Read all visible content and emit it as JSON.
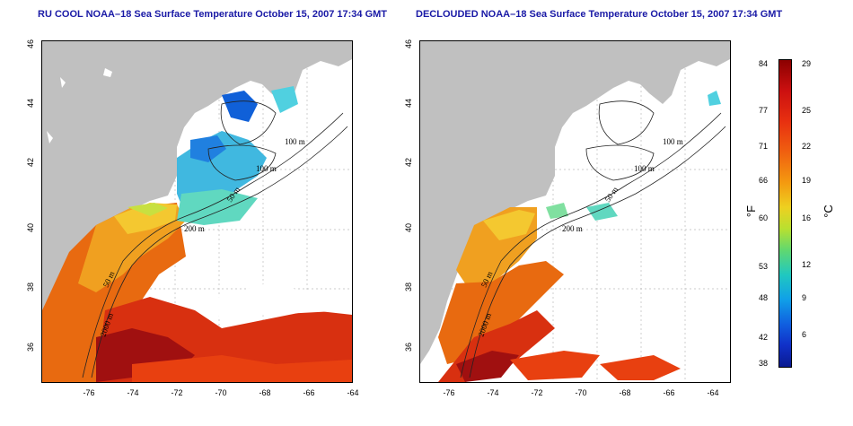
{
  "panel_left": {
    "title": "RU COOL NOAA–18 Sea Surface Temperature October 15, 2007 17:34 GMT"
  },
  "panel_right": {
    "title": "DECLOUDED NOAA–18 Sea Surface Temperature October 15, 2007 17:34 GMT"
  },
  "axes": {
    "x_ticks": [
      "-76",
      "-74",
      "-72",
      "-70",
      "-68",
      "-66",
      "-64"
    ],
    "y_ticks": [
      "46",
      "44",
      "42",
      "40",
      "38",
      "36"
    ]
  },
  "contours": {
    "left": [
      "100 m",
      "100 m",
      "50 m",
      "200 m",
      "50 m",
      "2000 m"
    ],
    "right": [
      "100 m",
      "100 m",
      "50 m",
      "200 m",
      "50 m",
      "2000 m"
    ]
  },
  "colorbar": {
    "fahrenheit_ticks": [
      "84",
      "77",
      "71",
      "66",
      "60",
      "53",
      "48",
      "42",
      "38"
    ],
    "celsius_ticks": [
      "29",
      "25",
      "22",
      "19",
      "16",
      "12",
      "9",
      "6"
    ],
    "unit_f": "°F",
    "unit_c": "°C",
    "range_c": [
      3,
      29
    ]
  },
  "colors": {
    "land": "#c0c0c0",
    "title": "#1a1aa6",
    "warm": "#e03010",
    "cool": "#30a0e0"
  }
}
